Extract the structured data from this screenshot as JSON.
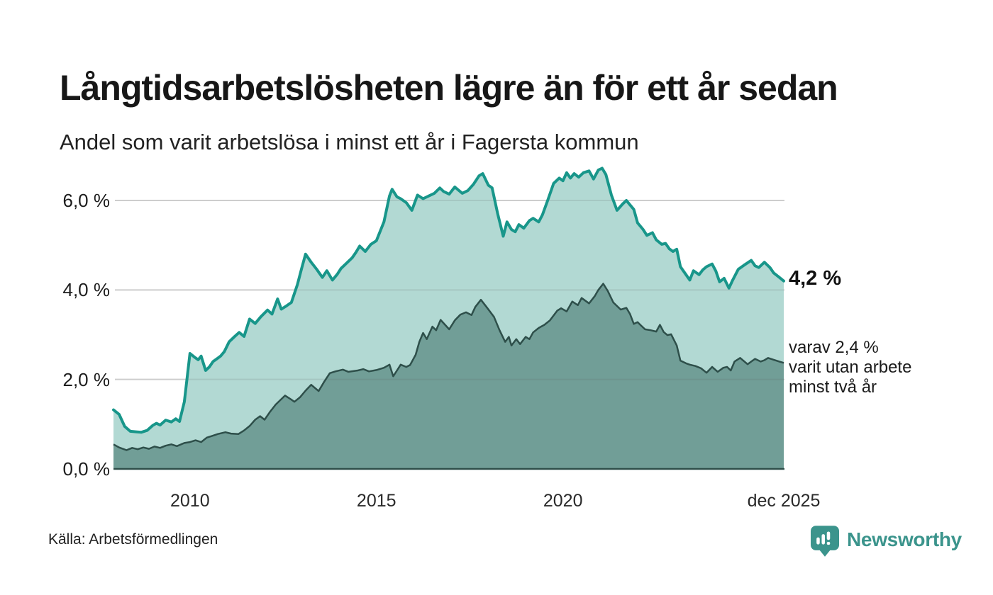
{
  "header": {
    "title": "Långtidsarbetslösheten lägre än för ett år sedan",
    "subtitle": "Andel som varit arbetslösa i minst ett år i Fagersta kommun"
  },
  "annotations": {
    "end_value": "4,2 %",
    "secondary": "varav 2,4 %\nvarit utan arbete\nminst två år"
  },
  "footer": {
    "source": "Källa: Arbetsförmedlingen",
    "brand": "Newsworthy"
  },
  "colors": {
    "line_primary": "#18968a",
    "fill_primary": "#b2d9d3",
    "line_secondary": "#2e4f4a",
    "fill_secondary": "#719e97",
    "gridline": "#e0e0e0",
    "grid_overlay": "rgba(90,90,90,0.14)",
    "baseline": "#2e4f4a",
    "brand_teal": "#3b948c"
  },
  "chart_data": {
    "type": "area",
    "title": "Långtidsarbetslösheten lägre än för ett år sedan",
    "subtitle": "Andel som varit arbetslösa i minst ett år i Fagersta kommun",
    "unit": "%",
    "x_domain": [
      2007.95,
      2025.92
    ],
    "y_domain": [
      0,
      6.9
    ],
    "grid": true,
    "legend": "none",
    "y_ticks": [
      {
        "v": 0,
        "label": "0,0 %"
      },
      {
        "v": 2,
        "label": "2,0 %"
      },
      {
        "v": 4,
        "label": "4,0 %"
      },
      {
        "v": 6,
        "label": "6,0 %"
      }
    ],
    "x_ticks": [
      {
        "v": 2010,
        "label": "2010"
      },
      {
        "v": 2015,
        "label": "2015"
      },
      {
        "v": 2020,
        "label": "2020"
      },
      {
        "v": 2025.92,
        "label": "dec 2025"
      }
    ],
    "series": [
      {
        "name": "Arbetslösa minst ett år",
        "end_label": "4,2 %",
        "end_value": 4.2,
        "points": [
          [
            2007.95,
            1.32
          ],
          [
            2008.1,
            1.22
          ],
          [
            2008.25,
            0.95
          ],
          [
            2008.4,
            0.84
          ],
          [
            2008.55,
            0.83
          ],
          [
            2008.7,
            0.82
          ],
          [
            2008.85,
            0.86
          ],
          [
            2009.0,
            0.97
          ],
          [
            2009.1,
            1.02
          ],
          [
            2009.2,
            0.98
          ],
          [
            2009.35,
            1.09
          ],
          [
            2009.5,
            1.05
          ],
          [
            2009.62,
            1.12
          ],
          [
            2009.72,
            1.06
          ],
          [
            2009.85,
            1.5
          ],
          [
            2010.0,
            2.58
          ],
          [
            2010.12,
            2.5
          ],
          [
            2010.22,
            2.44
          ],
          [
            2010.3,
            2.52
          ],
          [
            2010.42,
            2.2
          ],
          [
            2010.52,
            2.28
          ],
          [
            2010.62,
            2.4
          ],
          [
            2010.72,
            2.46
          ],
          [
            2010.82,
            2.52
          ],
          [
            2010.92,
            2.62
          ],
          [
            2011.05,
            2.84
          ],
          [
            2011.2,
            2.96
          ],
          [
            2011.32,
            3.05
          ],
          [
            2011.45,
            2.96
          ],
          [
            2011.6,
            3.35
          ],
          [
            2011.75,
            3.25
          ],
          [
            2011.9,
            3.4
          ],
          [
            2012.08,
            3.55
          ],
          [
            2012.2,
            3.46
          ],
          [
            2012.35,
            3.8
          ],
          [
            2012.45,
            3.57
          ],
          [
            2012.6,
            3.65
          ],
          [
            2012.72,
            3.72
          ],
          [
            2012.88,
            4.12
          ],
          [
            2013.0,
            4.5
          ],
          [
            2013.1,
            4.8
          ],
          [
            2013.25,
            4.62
          ],
          [
            2013.4,
            4.46
          ],
          [
            2013.55,
            4.28
          ],
          [
            2013.67,
            4.43
          ],
          [
            2013.82,
            4.22
          ],
          [
            2013.95,
            4.35
          ],
          [
            2014.05,
            4.48
          ],
          [
            2014.2,
            4.6
          ],
          [
            2014.35,
            4.72
          ],
          [
            2014.45,
            4.84
          ],
          [
            2014.55,
            4.98
          ],
          [
            2014.7,
            4.86
          ],
          [
            2014.85,
            5.02
          ],
          [
            2015.0,
            5.1
          ],
          [
            2015.2,
            5.52
          ],
          [
            2015.35,
            6.1
          ],
          [
            2015.42,
            6.25
          ],
          [
            2015.55,
            6.08
          ],
          [
            2015.65,
            6.04
          ],
          [
            2015.8,
            5.95
          ],
          [
            2015.95,
            5.78
          ],
          [
            2016.1,
            6.12
          ],
          [
            2016.25,
            6.04
          ],
          [
            2016.4,
            6.1
          ],
          [
            2016.55,
            6.16
          ],
          [
            2016.7,
            6.28
          ],
          [
            2016.8,
            6.2
          ],
          [
            2016.95,
            6.14
          ],
          [
            2017.1,
            6.3
          ],
          [
            2017.3,
            6.16
          ],
          [
            2017.45,
            6.22
          ],
          [
            2017.6,
            6.36
          ],
          [
            2017.75,
            6.55
          ],
          [
            2017.85,
            6.6
          ],
          [
            2018.0,
            6.34
          ],
          [
            2018.1,
            6.28
          ],
          [
            2018.25,
            5.7
          ],
          [
            2018.4,
            5.2
          ],
          [
            2018.5,
            5.52
          ],
          [
            2018.62,
            5.35
          ],
          [
            2018.72,
            5.3
          ],
          [
            2018.82,
            5.46
          ],
          [
            2018.95,
            5.38
          ],
          [
            2019.1,
            5.55
          ],
          [
            2019.2,
            5.6
          ],
          [
            2019.35,
            5.52
          ],
          [
            2019.45,
            5.68
          ],
          [
            2019.6,
            6.02
          ],
          [
            2019.75,
            6.38
          ],
          [
            2019.9,
            6.5
          ],
          [
            2020.0,
            6.44
          ],
          [
            2020.1,
            6.62
          ],
          [
            2020.2,
            6.5
          ],
          [
            2020.3,
            6.6
          ],
          [
            2020.42,
            6.52
          ],
          [
            2020.55,
            6.62
          ],
          [
            2020.7,
            6.66
          ],
          [
            2020.82,
            6.48
          ],
          [
            2020.95,
            6.68
          ],
          [
            2021.05,
            6.72
          ],
          [
            2021.15,
            6.58
          ],
          [
            2021.3,
            6.12
          ],
          [
            2021.45,
            5.78
          ],
          [
            2021.6,
            5.92
          ],
          [
            2021.7,
            6.0
          ],
          [
            2021.8,
            5.9
          ],
          [
            2021.9,
            5.8
          ],
          [
            2022.0,
            5.5
          ],
          [
            2022.15,
            5.35
          ],
          [
            2022.25,
            5.22
          ],
          [
            2022.4,
            5.28
          ],
          [
            2022.5,
            5.12
          ],
          [
            2022.65,
            5.02
          ],
          [
            2022.75,
            5.04
          ],
          [
            2022.85,
            4.92
          ],
          [
            2022.95,
            4.86
          ],
          [
            2023.05,
            4.91
          ],
          [
            2023.15,
            4.52
          ],
          [
            2023.3,
            4.34
          ],
          [
            2023.4,
            4.22
          ],
          [
            2023.5,
            4.43
          ],
          [
            2023.65,
            4.34
          ],
          [
            2023.75,
            4.45
          ],
          [
            2023.85,
            4.52
          ],
          [
            2024.0,
            4.58
          ],
          [
            2024.1,
            4.42
          ],
          [
            2024.2,
            4.18
          ],
          [
            2024.32,
            4.26
          ],
          [
            2024.45,
            4.04
          ],
          [
            2024.55,
            4.22
          ],
          [
            2024.7,
            4.46
          ],
          [
            2024.85,
            4.55
          ],
          [
            2025.05,
            4.66
          ],
          [
            2025.15,
            4.54
          ],
          [
            2025.25,
            4.5
          ],
          [
            2025.4,
            4.62
          ],
          [
            2025.55,
            4.5
          ],
          [
            2025.65,
            4.38
          ],
          [
            2025.8,
            4.28
          ],
          [
            2025.92,
            4.2
          ]
        ]
      },
      {
        "name": "varav arbetslösa minst två år",
        "end_label": "varav 2,4 % varit utan arbete minst två år",
        "end_value": 2.4,
        "points": [
          [
            2007.95,
            0.55
          ],
          [
            2008.1,
            0.48
          ],
          [
            2008.3,
            0.42
          ],
          [
            2008.45,
            0.47
          ],
          [
            2008.6,
            0.44
          ],
          [
            2008.75,
            0.48
          ],
          [
            2008.9,
            0.45
          ],
          [
            2009.05,
            0.5
          ],
          [
            2009.2,
            0.47
          ],
          [
            2009.35,
            0.52
          ],
          [
            2009.5,
            0.55
          ],
          [
            2009.65,
            0.51
          ],
          [
            2009.85,
            0.58
          ],
          [
            2010.0,
            0.6
          ],
          [
            2010.15,
            0.64
          ],
          [
            2010.3,
            0.6
          ],
          [
            2010.45,
            0.7
          ],
          [
            2010.6,
            0.74
          ],
          [
            2010.75,
            0.78
          ],
          [
            2010.95,
            0.82
          ],
          [
            2011.1,
            0.79
          ],
          [
            2011.3,
            0.78
          ],
          [
            2011.45,
            0.86
          ],
          [
            2011.6,
            0.96
          ],
          [
            2011.75,
            1.1
          ],
          [
            2011.88,
            1.18
          ],
          [
            2012.0,
            1.1
          ],
          [
            2012.15,
            1.28
          ],
          [
            2012.3,
            1.44
          ],
          [
            2012.55,
            1.64
          ],
          [
            2012.7,
            1.56
          ],
          [
            2012.8,
            1.5
          ],
          [
            2012.95,
            1.6
          ],
          [
            2013.1,
            1.75
          ],
          [
            2013.25,
            1.88
          ],
          [
            2013.45,
            1.74
          ],
          [
            2013.6,
            1.95
          ],
          [
            2013.75,
            2.14
          ],
          [
            2013.9,
            2.18
          ],
          [
            2014.1,
            2.22
          ],
          [
            2014.25,
            2.17
          ],
          [
            2014.5,
            2.2
          ],
          [
            2014.65,
            2.23
          ],
          [
            2014.8,
            2.18
          ],
          [
            2015.0,
            2.21
          ],
          [
            2015.2,
            2.26
          ],
          [
            2015.35,
            2.33
          ],
          [
            2015.45,
            2.07
          ],
          [
            2015.55,
            2.2
          ],
          [
            2015.65,
            2.33
          ],
          [
            2015.8,
            2.28
          ],
          [
            2015.9,
            2.32
          ],
          [
            2016.05,
            2.55
          ],
          [
            2016.15,
            2.84
          ],
          [
            2016.25,
            3.04
          ],
          [
            2016.35,
            2.9
          ],
          [
            2016.5,
            3.18
          ],
          [
            2016.6,
            3.1
          ],
          [
            2016.72,
            3.33
          ],
          [
            2016.95,
            3.12
          ],
          [
            2017.1,
            3.32
          ],
          [
            2017.25,
            3.45
          ],
          [
            2017.4,
            3.5
          ],
          [
            2017.55,
            3.44
          ],
          [
            2017.65,
            3.62
          ],
          [
            2017.8,
            3.78
          ],
          [
            2017.95,
            3.62
          ],
          [
            2018.15,
            3.4
          ],
          [
            2018.3,
            3.1
          ],
          [
            2018.45,
            2.84
          ],
          [
            2018.55,
            2.95
          ],
          [
            2018.62,
            2.76
          ],
          [
            2018.75,
            2.9
          ],
          [
            2018.85,
            2.79
          ],
          [
            2019.0,
            2.95
          ],
          [
            2019.1,
            2.9
          ],
          [
            2019.2,
            3.05
          ],
          [
            2019.35,
            3.15
          ],
          [
            2019.5,
            3.22
          ],
          [
            2019.65,
            3.32
          ],
          [
            2019.85,
            3.54
          ],
          [
            2019.95,
            3.59
          ],
          [
            2020.1,
            3.52
          ],
          [
            2020.25,
            3.74
          ],
          [
            2020.4,
            3.66
          ],
          [
            2020.5,
            3.82
          ],
          [
            2020.7,
            3.7
          ],
          [
            2020.85,
            3.86
          ],
          [
            2020.95,
            4.0
          ],
          [
            2021.08,
            4.14
          ],
          [
            2021.2,
            3.98
          ],
          [
            2021.35,
            3.72
          ],
          [
            2021.55,
            3.56
          ],
          [
            2021.7,
            3.6
          ],
          [
            2021.8,
            3.46
          ],
          [
            2021.9,
            3.24
          ],
          [
            2022.0,
            3.28
          ],
          [
            2022.1,
            3.2
          ],
          [
            2022.2,
            3.12
          ],
          [
            2022.35,
            3.1
          ],
          [
            2022.5,
            3.07
          ],
          [
            2022.6,
            3.22
          ],
          [
            2022.7,
            3.06
          ],
          [
            2022.8,
            2.99
          ],
          [
            2022.9,
            3.01
          ],
          [
            2023.05,
            2.76
          ],
          [
            2023.15,
            2.42
          ],
          [
            2023.3,
            2.36
          ],
          [
            2023.4,
            2.33
          ],
          [
            2023.55,
            2.3
          ],
          [
            2023.7,
            2.25
          ],
          [
            2023.85,
            2.15
          ],
          [
            2024.0,
            2.28
          ],
          [
            2024.15,
            2.17
          ],
          [
            2024.3,
            2.26
          ],
          [
            2024.4,
            2.28
          ],
          [
            2024.5,
            2.2
          ],
          [
            2024.6,
            2.4
          ],
          [
            2024.75,
            2.48
          ],
          [
            2024.95,
            2.34
          ],
          [
            2025.05,
            2.4
          ],
          [
            2025.15,
            2.46
          ],
          [
            2025.3,
            2.4
          ],
          [
            2025.4,
            2.43
          ],
          [
            2025.5,
            2.48
          ],
          [
            2025.65,
            2.44
          ],
          [
            2025.8,
            2.4
          ],
          [
            2025.92,
            2.37
          ]
        ]
      }
    ]
  }
}
